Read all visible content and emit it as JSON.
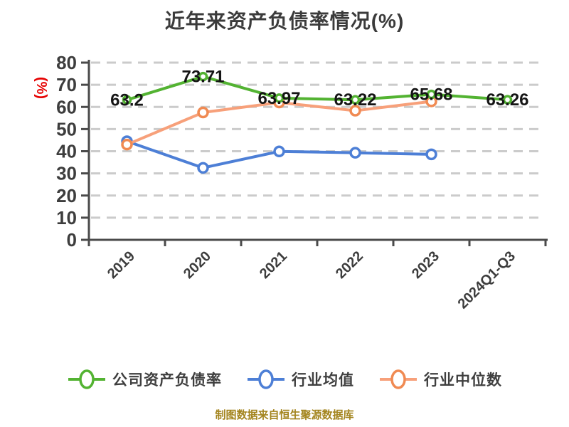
{
  "title": "近年来资产负债率情况(%)",
  "footer": {
    "text": "制图数据来自恒生聚源数据库",
    "color": "#a3841d"
  },
  "y_axis": {
    "unit_label": "(%)",
    "unit_color": "#e60000"
  },
  "chart_data": {
    "type": "line",
    "title": "近年来资产负债率情况(%)",
    "categories": [
      "2019",
      "2020",
      "2021",
      "2022",
      "2023",
      "2024Q1-Q3"
    ],
    "ylim": [
      0,
      80
    ],
    "ytick_step": 10,
    "grid": "horizontal-dashed",
    "legend_position": "bottom",
    "xlabel": "",
    "ylabel": "(%)",
    "series": [
      {
        "name": "公司资产负债率",
        "color": "#53b332",
        "values": [
          63.2,
          73.71,
          63.97,
          63.22,
          65.68,
          63.26
        ],
        "labels": [
          "63.2",
          "73.71",
          "63.97",
          "63.22",
          "65.68",
          "63.26"
        ]
      },
      {
        "name": "行业均值",
        "color": "#4d7fd6",
        "values": [
          44.5,
          32.5,
          39.9,
          39.3,
          38.6,
          null
        ]
      },
      {
        "name": "行业中位数",
        "color": "#f08a52",
        "line_color": "#f7a07a",
        "values": [
          43,
          57.5,
          62,
          58.3,
          62.5,
          null
        ]
      }
    ],
    "axis_color": "#4a4a4a",
    "grid_color": "#cbcbcb",
    "tick_label_color": "#3d3d3d",
    "data_label_color": "#151515"
  }
}
